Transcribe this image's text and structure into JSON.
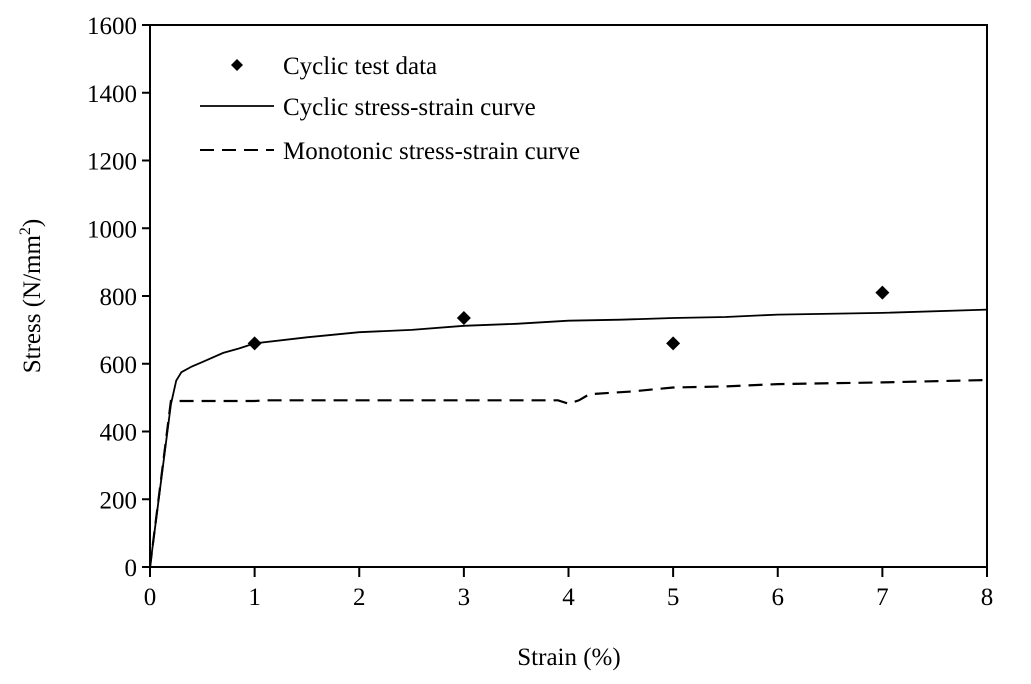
{
  "chart_data": {
    "type": "line",
    "xlabel": "Strain (%)",
    "ylabel": "Stress (N/mm",
    "ylabel_superscript": "2",
    "ylabel_close": ")",
    "xlim": [
      0,
      8
    ],
    "ylim": [
      0,
      1600
    ],
    "x_ticks": [
      "0",
      "1",
      "2",
      "3",
      "4",
      "5",
      "6",
      "7",
      "8"
    ],
    "y_ticks": [
      "0",
      "200",
      "400",
      "600",
      "800",
      "1000",
      "1200",
      "1400",
      "1600"
    ],
    "grid": false,
    "legend_position": "top-left",
    "series": [
      {
        "name": "Cyclic test data",
        "style": "markers-diamond",
        "points": [
          [
            1,
            660
          ],
          [
            3,
            735
          ],
          [
            5,
            660
          ],
          [
            7,
            810
          ]
        ]
      },
      {
        "name": "Cyclic stress-strain curve",
        "style": "solid",
        "points": [
          [
            0,
            0
          ],
          [
            0.2,
            480
          ],
          [
            0.25,
            550
          ],
          [
            0.3,
            575
          ],
          [
            0.4,
            592
          ],
          [
            0.5,
            605
          ],
          [
            0.7,
            632
          ],
          [
            0.85,
            645
          ],
          [
            1,
            660
          ],
          [
            1.5,
            678
          ],
          [
            2,
            693
          ],
          [
            2.5,
            700
          ],
          [
            3,
            712
          ],
          [
            3.5,
            718
          ],
          [
            4,
            727
          ],
          [
            4.5,
            730
          ],
          [
            5,
            735
          ],
          [
            5.5,
            738
          ],
          [
            6,
            745
          ],
          [
            7,
            750
          ],
          [
            8,
            760
          ]
        ]
      },
      {
        "name": "Monotonic stress-strain curve",
        "style": "dashed",
        "points": [
          [
            0,
            0
          ],
          [
            0.2,
            490
          ],
          [
            1,
            490
          ],
          [
            1.1,
            492
          ],
          [
            2,
            492
          ],
          [
            3,
            492
          ],
          [
            3.9,
            492
          ],
          [
            4,
            482
          ],
          [
            4.1,
            492
          ],
          [
            4.2,
            510
          ],
          [
            4.6,
            518
          ],
          [
            5,
            530
          ],
          [
            5.5,
            533
          ],
          [
            6,
            540
          ],
          [
            7,
            545
          ],
          [
            8,
            552
          ]
        ]
      }
    ],
    "colors": {
      "ink": "#000000",
      "background": "#ffffff"
    }
  }
}
